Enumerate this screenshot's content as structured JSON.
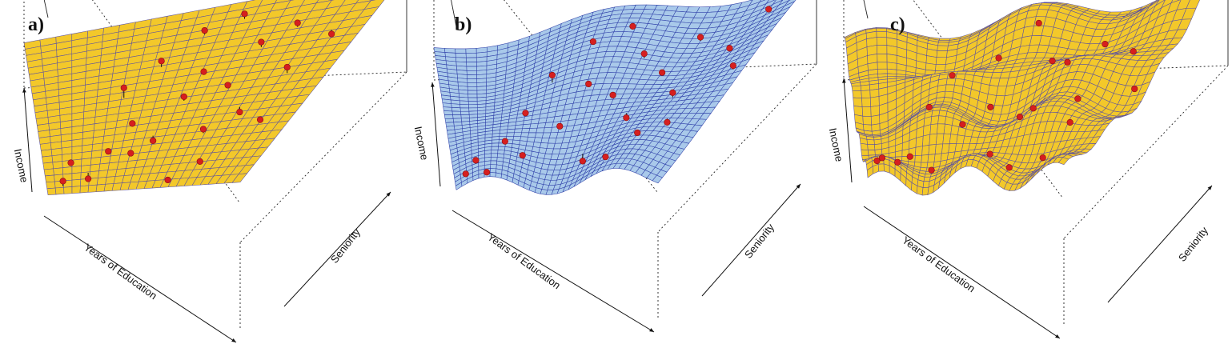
{
  "colors": {
    "surface_a": "#f3c82a",
    "surface_b": "#a9c9ea",
    "surface_c": "#f3c82a",
    "grid_yellow": "#5a50a0",
    "grid_blue": "#2e3fa8",
    "point": "#d61f1f",
    "stem": "#111111",
    "box": "#222222"
  },
  "chart_data": [
    {
      "type": "surface",
      "panel_label": "a)",
      "xlabel": "Years of Education",
      "ylabel": "Seniority",
      "zlabel": "Income",
      "model": "linear",
      "surface_color": "#f3c82a",
      "grid_color": "#5a50a0",
      "points": [
        {
          "u": 0.08,
          "v": 0.05,
          "d": 0.05
        },
        {
          "u": 0.12,
          "v": 0.18,
          "d": 0.02
        },
        {
          "u": 0.2,
          "v": 0.12,
          "d": -0.06
        },
        {
          "u": 0.28,
          "v": 0.22,
          "d": 0.03
        },
        {
          "u": 0.38,
          "v": 0.2,
          "d": 0.02
        },
        {
          "u": 0.45,
          "v": 0.3,
          "d": -0.05
        },
        {
          "u": 0.52,
          "v": 0.48,
          "d": 0.04
        },
        {
          "u": 0.6,
          "v": 0.05,
          "d": -0.02
        },
        {
          "u": 0.72,
          "v": 0.12,
          "d": 0.01
        },
        {
          "u": 0.3,
          "v": 0.55,
          "d": 0.1
        },
        {
          "u": 0.4,
          "v": 0.7,
          "d": 0.06
        },
        {
          "u": 0.55,
          "v": 0.62,
          "d": 0.02
        },
        {
          "u": 0.65,
          "v": 0.55,
          "d": -0.03
        },
        {
          "u": 0.7,
          "v": 0.72,
          "d": 0.05
        },
        {
          "u": 0.78,
          "v": 0.8,
          "d": 0.04
        },
        {
          "u": 0.85,
          "v": 0.55,
          "d": 0.06
        },
        {
          "u": 0.9,
          "v": 0.75,
          "d": -0.04
        },
        {
          "u": 0.95,
          "v": 0.9,
          "d": 0.03
        },
        {
          "u": 0.8,
          "v": 0.95,
          "d": 0.02
        },
        {
          "u": 0.6,
          "v": 0.9,
          "d": 0.05
        },
        {
          "u": 0.75,
          "v": 0.4,
          "d": -0.05
        },
        {
          "u": 0.88,
          "v": 0.3,
          "d": 0.03
        },
        {
          "u": 0.5,
          "v": 0.85,
          "d": 0.04
        },
        {
          "u": 0.35,
          "v": 0.4,
          "d": -0.02
        },
        {
          "u": 0.66,
          "v": 0.28,
          "d": 0.04
        }
      ]
    },
    {
      "type": "surface",
      "panel_label": "b)",
      "xlabel": "Years of Education",
      "ylabel": "Seniority",
      "zlabel": "Income",
      "model": "smooth",
      "surface_color": "#a9c9ea",
      "grid_color": "#2e3fa8",
      "points": [
        {
          "u": 0.05,
          "v": 0.05,
          "d": 0.03
        },
        {
          "u": 0.1,
          "v": 0.15,
          "d": -0.02
        },
        {
          "u": 0.15,
          "v": 0.05,
          "d": -0.03
        },
        {
          "u": 0.22,
          "v": 0.25,
          "d": 0.02
        },
        {
          "u": 0.3,
          "v": 0.18,
          "d": 0.01
        },
        {
          "u": 0.42,
          "v": 0.35,
          "d": 0.03
        },
        {
          "u": 0.55,
          "v": 0.2,
          "d": -0.08
        },
        {
          "u": 0.68,
          "v": 0.12,
          "d": -0.03
        },
        {
          "u": 0.35,
          "v": 0.62,
          "d": 0.08
        },
        {
          "u": 0.48,
          "v": 0.55,
          "d": 0.02
        },
        {
          "u": 0.58,
          "v": 0.48,
          "d": 0.03
        },
        {
          "u": 0.62,
          "v": 0.7,
          "d": 0.05
        },
        {
          "u": 0.7,
          "v": 0.62,
          "d": 0.02
        },
        {
          "u": 0.75,
          "v": 0.82,
          "d": 0.04
        },
        {
          "u": 0.8,
          "v": 0.45,
          "d": 0.05
        },
        {
          "u": 0.88,
          "v": 0.7,
          "d": 0.03
        },
        {
          "u": 0.92,
          "v": 0.88,
          "d": 0.02
        },
        {
          "u": 0.85,
          "v": 0.3,
          "d": -0.04
        },
        {
          "u": 0.96,
          "v": 0.55,
          "d": 0.04
        },
        {
          "u": 0.55,
          "v": 0.85,
          "d": 0.03
        },
        {
          "u": 0.45,
          "v": 0.78,
          "d": 0.02
        },
        {
          "u": 0.66,
          "v": 0.38,
          "d": -0.05
        },
        {
          "u": 0.28,
          "v": 0.45,
          "d": 0.03
        },
        {
          "u": 0.78,
          "v": 0.2,
          "d": 0.02
        }
      ]
    },
    {
      "type": "surface",
      "panel_label": "c)",
      "xlabel": "Years of Education",
      "ylabel": "Seniority",
      "zlabel": "Income",
      "model": "wiggly",
      "surface_color": "#f3c82a",
      "grid_color": "#5a50a0",
      "points": [
        {
          "u": 0.05,
          "v": 0.04,
          "d": 0.01
        },
        {
          "u": 0.08,
          "v": 0.15,
          "d": 0.0
        },
        {
          "u": 0.15,
          "v": 0.08,
          "d": 0.0
        },
        {
          "u": 0.2,
          "v": 0.22,
          "d": 0.0
        },
        {
          "u": 0.3,
          "v": 0.15,
          "d": 0.0
        },
        {
          "u": 0.4,
          "v": 0.32,
          "d": 0.0
        },
        {
          "u": 0.55,
          "v": 0.18,
          "d": 0.0
        },
        {
          "u": 0.66,
          "v": 0.12,
          "d": 0.0
        },
        {
          "u": 0.32,
          "v": 0.6,
          "d": 0.0
        },
        {
          "u": 0.46,
          "v": 0.52,
          "d": 0.0
        },
        {
          "u": 0.58,
          "v": 0.45,
          "d": 0.0
        },
        {
          "u": 0.62,
          "v": 0.68,
          "d": 0.0
        },
        {
          "u": 0.7,
          "v": 0.58,
          "d": 0.0
        },
        {
          "u": 0.74,
          "v": 0.8,
          "d": 0.0
        },
        {
          "u": 0.8,
          "v": 0.42,
          "d": 0.0
        },
        {
          "u": 0.87,
          "v": 0.68,
          "d": 0.0
        },
        {
          "u": 0.92,
          "v": 0.86,
          "d": 0.0
        },
        {
          "u": 0.84,
          "v": 0.28,
          "d": 0.0
        },
        {
          "u": 0.95,
          "v": 0.52,
          "d": 0.0
        },
        {
          "u": 0.54,
          "v": 0.84,
          "d": 0.0
        },
        {
          "u": 0.44,
          "v": 0.76,
          "d": 0.0
        },
        {
          "u": 0.66,
          "v": 0.36,
          "d": 0.0
        },
        {
          "u": 0.26,
          "v": 0.42,
          "d": 0.0
        },
        {
          "u": 0.78,
          "v": 0.18,
          "d": 0.0
        },
        {
          "u": 0.9,
          "v": 0.95,
          "d": 0.0
        }
      ]
    }
  ]
}
